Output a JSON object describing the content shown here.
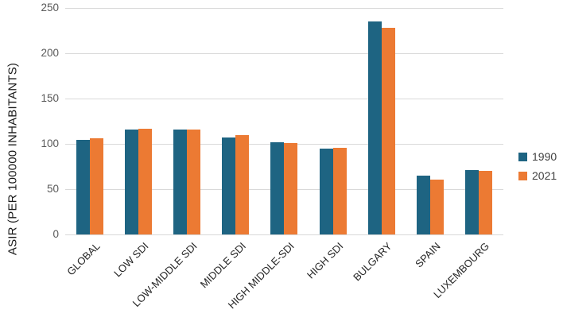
{
  "chart_data": {
    "type": "bar",
    "title": "",
    "xlabel": "",
    "ylabel": "ASIR (PER 100000 INHABITANTS)",
    "ylim": [
      0,
      250
    ],
    "yticks": [
      0,
      50,
      100,
      150,
      200,
      250
    ],
    "grid": true,
    "legend_position": "right",
    "categories": [
      "GLOBAL",
      "LOW SDI",
      "LOW-MIDDLE SDI",
      "MIDDLE SDI",
      "HIGH MIDDLE-SDI",
      "HIGH SDI",
      "BULGARY",
      "SPAIN",
      "LUXEMBOURG"
    ],
    "series": [
      {
        "name": "1990",
        "color": "#1e6482",
        "values": [
          104,
          116,
          116,
          107,
          102,
          95,
          235,
          65,
          71
        ]
      },
      {
        "name": "2021",
        "color": "#ec7a33",
        "values": [
          106,
          117,
          116,
          110,
          101,
          96,
          228,
          61,
          70
        ]
      }
    ]
  },
  "colors": {
    "background": "#ffffff",
    "gridline": "#d9d9d9",
    "tick_text": "#595959",
    "category_text": "#262626",
    "legend_text": "#404040"
  }
}
